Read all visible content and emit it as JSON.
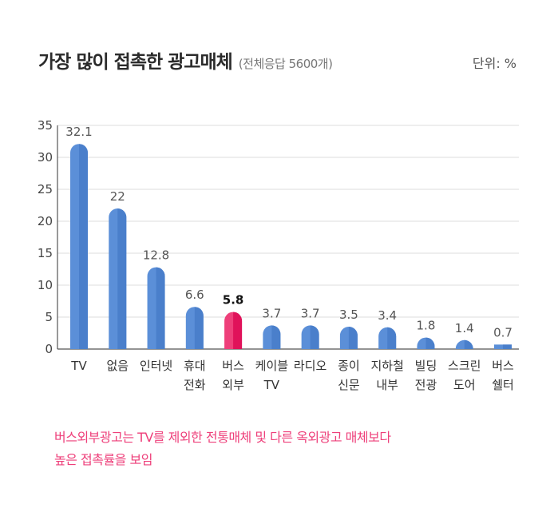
{
  "title": "가장 많이 접촉한 광고매체",
  "subtitle": "(전체응답 5600개)",
  "unit_label": "단위: %",
  "note_lines": [
    "버스외부광고는 TV를 제외한 전통매체 및 다른 옥외광고 매체보다",
    "높은 접촉률을 보임"
  ],
  "colors": {
    "bar": "#5b8fd8",
    "bar_dark": "#4a7fcb",
    "highlight": "#ee3f7a",
    "highlight_dark": "#e0125a",
    "note": "#ee3f7a"
  },
  "chart_data": {
    "type": "bar",
    "categories": [
      [
        "TV"
      ],
      [
        "없음"
      ],
      [
        "인터넷"
      ],
      [
        "휴대",
        "전화"
      ],
      [
        "버스",
        "외부"
      ],
      [
        "케이블",
        "TV"
      ],
      [
        "라디오"
      ],
      [
        "종이",
        "신문"
      ],
      [
        "지하철",
        "내부"
      ],
      [
        "빌딩",
        "전광"
      ],
      [
        "스크린",
        "도어"
      ],
      [
        "버스",
        "쉘터"
      ]
    ],
    "values": [
      32.1,
      22,
      12.8,
      6.6,
      5.8,
      3.7,
      3.7,
      3.5,
      3.4,
      1.8,
      1.4,
      0.7
    ],
    "value_labels": [
      "32.1",
      "22",
      "12.8",
      "6.6",
      "5.8",
      "3.7",
      "3.7",
      "3.5",
      "3.4",
      "1.8",
      "1.4",
      "0.7"
    ],
    "highlight_index": 4,
    "ylim": [
      0,
      35
    ],
    "yticks": [
      0,
      5,
      10,
      15,
      20,
      25,
      30,
      35
    ],
    "grid": true
  }
}
